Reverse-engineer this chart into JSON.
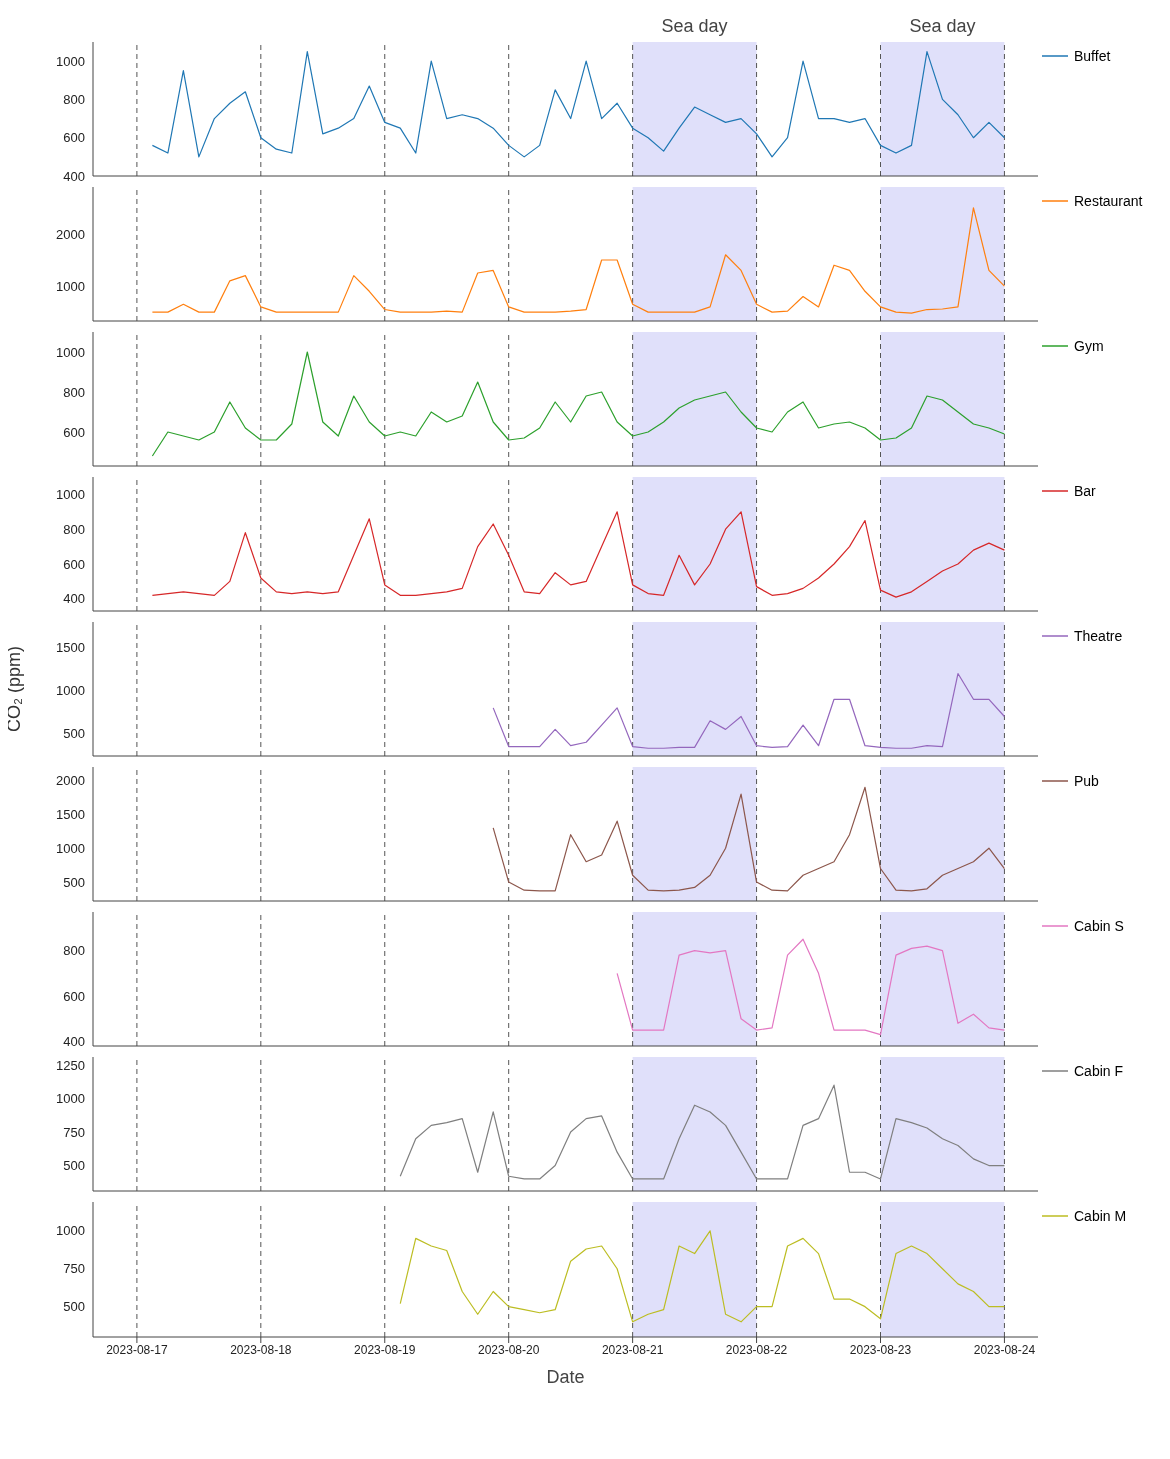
{
  "chart_data": [
    {
      "type": "line",
      "xlim": [
        "2023-08-16T15:30",
        "2023-08-24T06:30"
      ],
      "xticks": [
        "2023-08-17",
        "2023-08-18",
        "2023-08-19",
        "2023-08-20",
        "2023-08-21",
        "2023-08-22",
        "2023-08-23",
        "2023-08-24"
      ],
      "ylim": [
        400,
        1100
      ],
      "yticks": [
        400,
        600,
        800,
        1000
      ],
      "grid": "x",
      "legend": "top right",
      "tick_labels": "y",
      "bands": [
        {
          "axis": "x",
          "from": "2023-08-21",
          "to": "2023-08-22",
          "label": "Sea day",
          "color": "#e0e0fa"
        },
        {
          "axis": "x",
          "from": "2023-08-23",
          "to": "2023-08-24",
          "label": "Sea day",
          "color": "#e0e0fa"
        }
      ],
      "x": [
        "2023-08-17T03:00",
        "2023-08-17T06:00",
        "2023-08-17T09:00",
        "2023-08-17T12:00",
        "2023-08-17T15:00",
        "2023-08-17T18:00",
        "2023-08-17T21:00",
        "2023-08-18T00:00",
        "2023-08-18T03:00",
        "2023-08-18T06:00",
        "2023-08-18T09:00",
        "2023-08-18T12:00",
        "2023-08-18T15:00",
        "2023-08-18T18:00",
        "2023-08-18T21:00",
        "2023-08-19T00:00",
        "2023-08-19T03:00",
        "2023-08-19T06:00",
        "2023-08-19T09:00",
        "2023-08-19T12:00",
        "2023-08-19T15:00",
        "2023-08-19T18:00",
        "2023-08-19T21:00",
        "2023-08-20T00:00",
        "2023-08-20T03:00",
        "2023-08-20T06:00",
        "2023-08-20T09:00",
        "2023-08-20T12:00",
        "2023-08-20T15:00",
        "2023-08-20T18:00",
        "2023-08-20T21:00",
        "2023-08-21T00:00",
        "2023-08-21T03:00",
        "2023-08-21T06:00",
        "2023-08-21T09:00",
        "2023-08-21T12:00",
        "2023-08-21T15:00",
        "2023-08-21T18:00",
        "2023-08-21T21:00",
        "2023-08-22T00:00",
        "2023-08-22T03:00",
        "2023-08-22T06:00",
        "2023-08-22T09:00",
        "2023-08-22T12:00",
        "2023-08-22T15:00",
        "2023-08-22T18:00",
        "2023-08-22T21:00",
        "2023-08-23T00:00",
        "2023-08-23T03:00",
        "2023-08-23T06:00",
        "2023-08-23T09:00",
        "2023-08-23T12:00",
        "2023-08-23T15:00",
        "2023-08-23T18:00",
        "2023-08-23T21:00",
        "2023-08-24T00:00"
      ],
      "series": [
        {
          "name": "Buffet",
          "color": "#1f77b4",
          "values": [
            560,
            520,
            950,
            500,
            700,
            780,
            840,
            600,
            540,
            520,
            1050,
            620,
            650,
            700,
            870,
            680,
            650,
            520,
            1000,
            700,
            720,
            700,
            650,
            560,
            500,
            560,
            850,
            700,
            1000,
            700,
            780,
            650,
            600,
            530,
            650,
            760,
            720,
            680,
            700,
            620,
            500,
            600,
            1000,
            700,
            700,
            680,
            700,
            560,
            520,
            560,
            1050,
            800,
            720,
            600,
            680,
            600
          ]
        }
      ]
    },
    {
      "type": "line",
      "xlim": [
        "2023-08-16T15:30",
        "2023-08-24T06:30"
      ],
      "xticks": [
        "2023-08-17",
        "2023-08-18",
        "2023-08-19",
        "2023-08-20",
        "2023-08-21",
        "2023-08-22",
        "2023-08-23",
        "2023-08-24"
      ],
      "ylim": [
        330,
        2900
      ],
      "yticks": [
        1000,
        2000
      ],
      "grid": "x",
      "legend": "top right",
      "tick_labels": "y",
      "bands": [
        {
          "axis": "x",
          "from": "2023-08-21",
          "to": "2023-08-22",
          "label": null,
          "color": "#e0e0fa"
        },
        {
          "axis": "x",
          "from": "2023-08-23",
          "to": "2023-08-24",
          "label": null,
          "color": "#e0e0fa"
        }
      ],
      "x": [
        "2023-08-17T03:00",
        "2023-08-17T06:00",
        "2023-08-17T09:00",
        "2023-08-17T12:00",
        "2023-08-17T15:00",
        "2023-08-17T18:00",
        "2023-08-17T21:00",
        "2023-08-18T00:00",
        "2023-08-18T03:00",
        "2023-08-18T06:00",
        "2023-08-18T09:00",
        "2023-08-18T12:00",
        "2023-08-18T15:00",
        "2023-08-18T18:00",
        "2023-08-18T21:00",
        "2023-08-19T00:00",
        "2023-08-19T03:00",
        "2023-08-19T06:00",
        "2023-08-19T09:00",
        "2023-08-19T12:00",
        "2023-08-19T15:00",
        "2023-08-19T18:00",
        "2023-08-19T21:00",
        "2023-08-20T00:00",
        "2023-08-20T03:00",
        "2023-08-20T06:00",
        "2023-08-20T09:00",
        "2023-08-20T12:00",
        "2023-08-20T15:00",
        "2023-08-20T18:00",
        "2023-08-20T21:00",
        "2023-08-21T00:00",
        "2023-08-21T03:00",
        "2023-08-21T06:00",
        "2023-08-21T09:00",
        "2023-08-21T12:00",
        "2023-08-21T15:00",
        "2023-08-21T18:00",
        "2023-08-21T21:00",
        "2023-08-22T00:00",
        "2023-08-22T03:00",
        "2023-08-22T06:00",
        "2023-08-22T09:00",
        "2023-08-22T12:00",
        "2023-08-22T15:00",
        "2023-08-22T18:00",
        "2023-08-22T21:00",
        "2023-08-23T00:00",
        "2023-08-23T03:00",
        "2023-08-23T06:00",
        "2023-08-23T09:00",
        "2023-08-23T12:00",
        "2023-08-23T15:00",
        "2023-08-23T18:00",
        "2023-08-23T21:00",
        "2023-08-24T00:00"
      ],
      "series": [
        {
          "name": "Restaurant",
          "color": "#ff7f0e",
          "values": [
            500,
            500,
            650,
            500,
            500,
            1100,
            1200,
            600,
            500,
            500,
            500,
            500,
            500,
            1200,
            900,
            550,
            500,
            500,
            500,
            520,
            500,
            1250,
            1300,
            600,
            500,
            500,
            500,
            520,
            550,
            1500,
            1500,
            650,
            500,
            500,
            500,
            500,
            600,
            1600,
            1300,
            650,
            500,
            520,
            800,
            600,
            1400,
            1300,
            900,
            600,
            500,
            480,
            550,
            560,
            600,
            2500,
            1300,
            1000
          ]
        }
      ]
    },
    {
      "type": "line",
      "xlim": [
        "2023-08-16T15:30",
        "2023-08-24T06:30"
      ],
      "xticks": [
        "2023-08-17",
        "2023-08-18",
        "2023-08-19",
        "2023-08-20",
        "2023-08-21",
        "2023-08-22",
        "2023-08-23",
        "2023-08-24"
      ],
      "ylim": [
        430,
        1100
      ],
      "yticks": [
        600,
        800,
        1000
      ],
      "grid": "x",
      "legend": "top right",
      "tick_labels": "y",
      "bands": [
        {
          "axis": "x",
          "from": "2023-08-21",
          "to": "2023-08-22",
          "label": null,
          "color": "#e0e0fa"
        },
        {
          "axis": "x",
          "from": "2023-08-23",
          "to": "2023-08-24",
          "label": null,
          "color": "#e0e0fa"
        }
      ],
      "x": [
        "2023-08-17T03:00",
        "2023-08-17T06:00",
        "2023-08-17T09:00",
        "2023-08-17T12:00",
        "2023-08-17T15:00",
        "2023-08-17T18:00",
        "2023-08-17T21:00",
        "2023-08-18T00:00",
        "2023-08-18T03:00",
        "2023-08-18T06:00",
        "2023-08-18T09:00",
        "2023-08-18T12:00",
        "2023-08-18T15:00",
        "2023-08-18T18:00",
        "2023-08-18T21:00",
        "2023-08-19T00:00",
        "2023-08-19T03:00",
        "2023-08-19T06:00",
        "2023-08-19T09:00",
        "2023-08-19T12:00",
        "2023-08-19T15:00",
        "2023-08-19T18:00",
        "2023-08-19T21:00",
        "2023-08-20T00:00",
        "2023-08-20T03:00",
        "2023-08-20T06:00",
        "2023-08-20T09:00",
        "2023-08-20T12:00",
        "2023-08-20T15:00",
        "2023-08-20T18:00",
        "2023-08-20T21:00",
        "2023-08-21T00:00",
        "2023-08-21T03:00",
        "2023-08-21T06:00",
        "2023-08-21T09:00",
        "2023-08-21T12:00",
        "2023-08-21T15:00",
        "2023-08-21T18:00",
        "2023-08-21T21:00",
        "2023-08-22T00:00",
        "2023-08-22T03:00",
        "2023-08-22T06:00",
        "2023-08-22T09:00",
        "2023-08-22T12:00",
        "2023-08-22T15:00",
        "2023-08-22T18:00",
        "2023-08-22T21:00",
        "2023-08-23T00:00",
        "2023-08-23T03:00",
        "2023-08-23T06:00",
        "2023-08-23T09:00",
        "2023-08-23T12:00",
        "2023-08-23T15:00",
        "2023-08-23T18:00",
        "2023-08-23T21:00",
        "2023-08-24T00:00"
      ],
      "series": [
        {
          "name": "Gym",
          "color": "#2ca02c",
          "values": [
            480,
            600,
            580,
            560,
            600,
            750,
            620,
            560,
            560,
            640,
            1000,
            650,
            580,
            780,
            650,
            580,
            600,
            580,
            700,
            650,
            680,
            850,
            650,
            560,
            570,
            620,
            750,
            650,
            780,
            800,
            650,
            580,
            600,
            650,
            720,
            760,
            780,
            800,
            700,
            620,
            600,
            700,
            750,
            620,
            640,
            650,
            620,
            560,
            570,
            620,
            780,
            760,
            700,
            640,
            620,
            590
          ]
        }
      ]
    },
    {
      "type": "line",
      "xlim": [
        "2023-08-16T15:30",
        "2023-08-24T06:30"
      ],
      "xticks": [
        "2023-08-17",
        "2023-08-18",
        "2023-08-19",
        "2023-08-20",
        "2023-08-21",
        "2023-08-22",
        "2023-08-23",
        "2023-08-24"
      ],
      "ylim": [
        330,
        1100
      ],
      "yticks": [
        400,
        600,
        800,
        1000
      ],
      "grid": "x",
      "legend": "top right",
      "tick_labels": "y",
      "bands": [
        {
          "axis": "x",
          "from": "2023-08-21",
          "to": "2023-08-22",
          "label": null,
          "color": "#e0e0fa"
        },
        {
          "axis": "x",
          "from": "2023-08-23",
          "to": "2023-08-24",
          "label": null,
          "color": "#e0e0fa"
        }
      ],
      "x": [
        "2023-08-17T03:00",
        "2023-08-17T06:00",
        "2023-08-17T09:00",
        "2023-08-17T12:00",
        "2023-08-17T15:00",
        "2023-08-17T18:00",
        "2023-08-17T21:00",
        "2023-08-18T00:00",
        "2023-08-18T03:00",
        "2023-08-18T06:00",
        "2023-08-18T09:00",
        "2023-08-18T12:00",
        "2023-08-18T15:00",
        "2023-08-18T18:00",
        "2023-08-18T21:00",
        "2023-08-19T00:00",
        "2023-08-19T03:00",
        "2023-08-19T06:00",
        "2023-08-19T09:00",
        "2023-08-19T12:00",
        "2023-08-19T15:00",
        "2023-08-19T18:00",
        "2023-08-19T21:00",
        "2023-08-20T00:00",
        "2023-08-20T03:00",
        "2023-08-20T06:00",
        "2023-08-20T09:00",
        "2023-08-20T12:00",
        "2023-08-20T15:00",
        "2023-08-20T18:00",
        "2023-08-20T21:00",
        "2023-08-21T00:00",
        "2023-08-21T03:00",
        "2023-08-21T06:00",
        "2023-08-21T09:00",
        "2023-08-21T12:00",
        "2023-08-21T15:00",
        "2023-08-21T18:00",
        "2023-08-21T21:00",
        "2023-08-22T00:00",
        "2023-08-22T03:00",
        "2023-08-22T06:00",
        "2023-08-22T09:00",
        "2023-08-22T12:00",
        "2023-08-22T15:00",
        "2023-08-22T18:00",
        "2023-08-22T21:00",
        "2023-08-23T00:00",
        "2023-08-23T03:00",
        "2023-08-23T06:00",
        "2023-08-23T09:00",
        "2023-08-23T12:00",
        "2023-08-23T15:00",
        "2023-08-23T18:00",
        "2023-08-23T21:00",
        "2023-08-24T00:00"
      ],
      "series": [
        {
          "name": "Bar",
          "color": "#d62728",
          "values": [
            420,
            430,
            440,
            430,
            420,
            500,
            780,
            520,
            440,
            430,
            440,
            430,
            440,
            650,
            860,
            480,
            420,
            420,
            430,
            440,
            460,
            700,
            830,
            650,
            440,
            430,
            550,
            480,
            500,
            700,
            900,
            480,
            430,
            420,
            650,
            480,
            600,
            800,
            900,
            470,
            420,
            430,
            460,
            520,
            600,
            700,
            850,
            450,
            410,
            440,
            500,
            560,
            600,
            680,
            720,
            680
          ]
        }
      ]
    },
    {
      "type": "line",
      "xlim": [
        "2023-08-16T15:30",
        "2023-08-24T06:30"
      ],
      "xticks": [
        "2023-08-17",
        "2023-08-18",
        "2023-08-19",
        "2023-08-20",
        "2023-08-21",
        "2023-08-22",
        "2023-08-23",
        "2023-08-24"
      ],
      "ylim": [
        240,
        1800
      ],
      "yticks": [
        500,
        1000,
        1500
      ],
      "grid": "x",
      "legend": "top right",
      "tick_labels": "y",
      "ylabel": "CO₂ (ppm)",
      "bands": [
        {
          "axis": "x",
          "from": "2023-08-21",
          "to": "2023-08-22",
          "label": null,
          "color": "#e0e0fa"
        },
        {
          "axis": "x",
          "from": "2023-08-23",
          "to": "2023-08-24",
          "label": null,
          "color": "#e0e0fa"
        }
      ],
      "x": [
        "2023-08-19T21:00",
        "2023-08-20T00:00",
        "2023-08-20T03:00",
        "2023-08-20T06:00",
        "2023-08-20T09:00",
        "2023-08-20T12:00",
        "2023-08-20T15:00",
        "2023-08-20T18:00",
        "2023-08-20T21:00",
        "2023-08-21T00:00",
        "2023-08-21T03:00",
        "2023-08-21T06:00",
        "2023-08-21T09:00",
        "2023-08-21T12:00",
        "2023-08-21T15:00",
        "2023-08-21T18:00",
        "2023-08-21T21:00",
        "2023-08-22T00:00",
        "2023-08-22T03:00",
        "2023-08-22T06:00",
        "2023-08-22T09:00",
        "2023-08-22T12:00",
        "2023-08-22T15:00",
        "2023-08-22T18:00",
        "2023-08-22T21:00",
        "2023-08-23T00:00",
        "2023-08-23T03:00",
        "2023-08-23T06:00",
        "2023-08-23T09:00",
        "2023-08-23T12:00",
        "2023-08-23T15:00",
        "2023-08-23T18:00",
        "2023-08-23T21:00",
        "2023-08-24T00:00"
      ],
      "series": [
        {
          "name": "Theatre",
          "color": "#9467bd",
          "values": [
            800,
            350,
            350,
            350,
            550,
            360,
            400,
            600,
            800,
            350,
            330,
            330,
            340,
            340,
            650,
            550,
            700,
            360,
            340,
            350,
            600,
            360,
            900,
            900,
            360,
            340,
            330,
            330,
            360,
            350,
            1200,
            900,
            900,
            700
          ]
        }
      ]
    },
    {
      "type": "line",
      "xlim": [
        "2023-08-16T15:30",
        "2023-08-24T06:30"
      ],
      "xticks": [
        "2023-08-17",
        "2023-08-18",
        "2023-08-19",
        "2023-08-20",
        "2023-08-21",
        "2023-08-22",
        "2023-08-23",
        "2023-08-24"
      ],
      "ylim": [
        220,
        2200
      ],
      "yticks": [
        500,
        1000,
        1500,
        2000
      ],
      "grid": "x",
      "legend": "top right",
      "tick_labels": "y",
      "bands": [
        {
          "axis": "x",
          "from": "2023-08-21",
          "to": "2023-08-22",
          "label": null,
          "color": "#e0e0fa"
        },
        {
          "axis": "x",
          "from": "2023-08-23",
          "to": "2023-08-24",
          "label": null,
          "color": "#e0e0fa"
        }
      ],
      "x": [
        "2023-08-19T21:00",
        "2023-08-20T00:00",
        "2023-08-20T03:00",
        "2023-08-20T06:00",
        "2023-08-20T09:00",
        "2023-08-20T12:00",
        "2023-08-20T15:00",
        "2023-08-20T18:00",
        "2023-08-20T21:00",
        "2023-08-21T00:00",
        "2023-08-21T03:00",
        "2023-08-21T06:00",
        "2023-08-21T09:00",
        "2023-08-21T12:00",
        "2023-08-21T15:00",
        "2023-08-21T18:00",
        "2023-08-21T21:00",
        "2023-08-22T00:00",
        "2023-08-22T03:00",
        "2023-08-22T06:00",
        "2023-08-22T09:00",
        "2023-08-22T12:00",
        "2023-08-22T15:00",
        "2023-08-22T18:00",
        "2023-08-22T21:00",
        "2023-08-23T00:00",
        "2023-08-23T03:00",
        "2023-08-23T06:00",
        "2023-08-23T09:00",
        "2023-08-23T12:00",
        "2023-08-23T15:00",
        "2023-08-23T18:00",
        "2023-08-23T21:00",
        "2023-08-24T00:00"
      ],
      "series": [
        {
          "name": "Pub",
          "color": "#8c564b",
          "values": [
            1300,
            500,
            380,
            370,
            370,
            1200,
            800,
            900,
            1400,
            600,
            380,
            370,
            380,
            420,
            600,
            1000,
            1800,
            500,
            380,
            370,
            600,
            700,
            800,
            1200,
            1900,
            700,
            380,
            370,
            400,
            600,
            700,
            800,
            1000,
            700
          ]
        }
      ]
    },
    {
      "type": "line",
      "xlim": [
        "2023-08-16T15:30",
        "2023-08-24T06:30"
      ],
      "xticks": [
        "2023-08-17",
        "2023-08-18",
        "2023-08-19",
        "2023-08-20",
        "2023-08-21",
        "2023-08-22",
        "2023-08-23",
        "2023-08-24"
      ],
      "ylim": [
        380,
        970
      ],
      "yticks": [
        400,
        600,
        800
      ],
      "grid": "x",
      "legend": "top right",
      "tick_labels": "y",
      "bands": [
        {
          "axis": "x",
          "from": "2023-08-21",
          "to": "2023-08-22",
          "label": null,
          "color": "#e0e0fa"
        },
        {
          "axis": "x",
          "from": "2023-08-23",
          "to": "2023-08-24",
          "label": null,
          "color": "#e0e0fa"
        }
      ],
      "x": [
        "2023-08-20T21:00",
        "2023-08-21T00:00",
        "2023-08-21T03:00",
        "2023-08-21T06:00",
        "2023-08-21T09:00",
        "2023-08-21T12:00",
        "2023-08-21T15:00",
        "2023-08-21T18:00",
        "2023-08-21T21:00",
        "2023-08-22T00:00",
        "2023-08-22T03:00",
        "2023-08-22T06:00",
        "2023-08-22T09:00",
        "2023-08-22T12:00",
        "2023-08-22T15:00",
        "2023-08-22T18:00",
        "2023-08-22T21:00",
        "2023-08-23T00:00",
        "2023-08-23T03:00",
        "2023-08-23T06:00",
        "2023-08-23T09:00",
        "2023-08-23T12:00",
        "2023-08-23T15:00",
        "2023-08-23T18:00",
        "2023-08-23T21:00",
        "2023-08-24T00:00"
      ],
      "series": [
        {
          "name": "Cabin S",
          "color": "#e377c2",
          "values": [
            700,
            450,
            450,
            450,
            780,
            800,
            790,
            800,
            500,
            450,
            460,
            780,
            850,
            700,
            450,
            450,
            450,
            430,
            780,
            810,
            820,
            800,
            480,
            520,
            460,
            450
          ]
        }
      ]
    },
    {
      "type": "line",
      "xlim": [
        "2023-08-16T15:30",
        "2023-08-24T06:30"
      ],
      "xticks": [
        "2023-08-17",
        "2023-08-18",
        "2023-08-19",
        "2023-08-20",
        "2023-08-21",
        "2023-08-22",
        "2023-08-23",
        "2023-08-24"
      ],
      "ylim": [
        310,
        1310
      ],
      "yticks": [
        500,
        750,
        1000,
        1250
      ],
      "grid": "x",
      "legend": "top right",
      "tick_labels": "y",
      "bands": [
        {
          "axis": "x",
          "from": "2023-08-21",
          "to": "2023-08-22",
          "label": null,
          "color": "#e0e0fa"
        },
        {
          "axis": "x",
          "from": "2023-08-23",
          "to": "2023-08-24",
          "label": null,
          "color": "#e0e0fa"
        }
      ],
      "x": [
        "2023-08-19T03:00",
        "2023-08-19T06:00",
        "2023-08-19T09:00",
        "2023-08-19T12:00",
        "2023-08-19T15:00",
        "2023-08-19T18:00",
        "2023-08-19T21:00",
        "2023-08-20T00:00",
        "2023-08-20T03:00",
        "2023-08-20T06:00",
        "2023-08-20T09:00",
        "2023-08-20T12:00",
        "2023-08-20T15:00",
        "2023-08-20T18:00",
        "2023-08-20T21:00",
        "2023-08-21T00:00",
        "2023-08-21T03:00",
        "2023-08-21T06:00",
        "2023-08-21T09:00",
        "2023-08-21T12:00",
        "2023-08-21T15:00",
        "2023-08-21T18:00",
        "2023-08-21T21:00",
        "2023-08-22T00:00",
        "2023-08-22T03:00",
        "2023-08-22T06:00",
        "2023-08-22T09:00",
        "2023-08-22T12:00",
        "2023-08-22T15:00",
        "2023-08-22T18:00",
        "2023-08-22T21:00",
        "2023-08-23T00:00",
        "2023-08-23T03:00",
        "2023-08-23T06:00",
        "2023-08-23T09:00",
        "2023-08-23T12:00",
        "2023-08-23T15:00",
        "2023-08-23T18:00",
        "2023-08-23T21:00",
        "2023-08-24T00:00"
      ],
      "series": [
        {
          "name": "Cabin F",
          "color": "#7f7f7f",
          "values": [
            420,
            700,
            800,
            820,
            850,
            450,
            900,
            420,
            400,
            400,
            500,
            750,
            850,
            870,
            600,
            400,
            400,
            400,
            700,
            950,
            900,
            800,
            600,
            400,
            400,
            400,
            800,
            850,
            1100,
            450,
            450,
            400,
            850,
            820,
            780,
            700,
            650,
            550,
            500,
            500
          ]
        }
      ]
    },
    {
      "type": "line",
      "xlim": [
        "2023-08-16T15:30",
        "2023-08-24T06:30"
      ],
      "xticks": [
        "2023-08-17",
        "2023-08-18",
        "2023-08-19",
        "2023-08-20",
        "2023-08-21",
        "2023-08-22",
        "2023-08-23",
        "2023-08-24"
      ],
      "ylim": [
        300,
        1190
      ],
      "yticks": [
        500,
        750,
        1000
      ],
      "grid": "x",
      "legend": "top right",
      "xlabel": "Date",
      "bands": [
        {
          "axis": "x",
          "from": "2023-08-21",
          "to": "2023-08-22",
          "label": null,
          "color": "#e0e0fa"
        },
        {
          "axis": "x",
          "from": "2023-08-23",
          "to": "2023-08-24",
          "label": null,
          "color": "#e0e0fa"
        }
      ],
      "x": [
        "2023-08-19T03:00",
        "2023-08-19T06:00",
        "2023-08-19T09:00",
        "2023-08-19T12:00",
        "2023-08-19T15:00",
        "2023-08-19T18:00",
        "2023-08-19T21:00",
        "2023-08-20T00:00",
        "2023-08-20T03:00",
        "2023-08-20T06:00",
        "2023-08-20T09:00",
        "2023-08-20T12:00",
        "2023-08-20T15:00",
        "2023-08-20T18:00",
        "2023-08-20T21:00",
        "2023-08-21T00:00",
        "2023-08-21T03:00",
        "2023-08-21T06:00",
        "2023-08-21T09:00",
        "2023-08-21T12:00",
        "2023-08-21T15:00",
        "2023-08-21T18:00",
        "2023-08-21T21:00",
        "2023-08-22T00:00",
        "2023-08-22T03:00",
        "2023-08-22T06:00",
        "2023-08-22T09:00",
        "2023-08-22T12:00",
        "2023-08-22T15:00",
        "2023-08-22T18:00",
        "2023-08-22T21:00",
        "2023-08-23T00:00",
        "2023-08-23T03:00",
        "2023-08-23T06:00",
        "2023-08-23T09:00",
        "2023-08-23T12:00",
        "2023-08-23T15:00",
        "2023-08-23T18:00",
        "2023-08-23T21:00",
        "2023-08-24T00:00"
      ],
      "series": [
        {
          "name": "Cabin M",
          "color": "#bcbd22",
          "values": [
            520,
            950,
            900,
            870,
            600,
            450,
            600,
            500,
            480,
            460,
            480,
            800,
            880,
            900,
            750,
            400,
            450,
            480,
            900,
            850,
            1000,
            450,
            400,
            500,
            500,
            900,
            950,
            850,
            550,
            550,
            500,
            420,
            850,
            900,
            850,
            750,
            650,
            600,
            500,
            500
          ]
        }
      ]
    }
  ]
}
